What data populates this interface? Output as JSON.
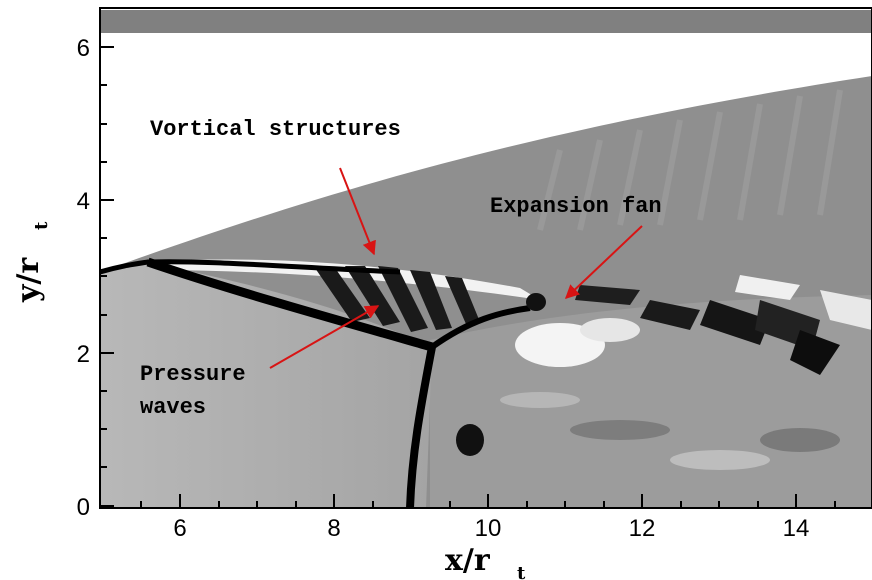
{
  "axes": {
    "x": {
      "title_main": "x/r",
      "title_sub": "t",
      "ticks": [
        "6",
        "8",
        "10",
        "12",
        "14"
      ],
      "range": [
        4.9,
        15.1
      ]
    },
    "y": {
      "title_main": "y/r",
      "title_sub": "t",
      "ticks": [
        "0",
        "2",
        "4",
        "6"
      ],
      "range": [
        0,
        6.5
      ]
    }
  },
  "annotations": {
    "vortical": "Vortical structures",
    "expansion": "Expansion fan",
    "pressure_line1": "Pressure",
    "pressure_line2": "waves"
  },
  "colors": {
    "arrow": "#d81414",
    "shock": "#000000",
    "flow_gray": "#a8a8a8",
    "ambient": "#8c8c8c",
    "top_band": "#808080"
  }
}
